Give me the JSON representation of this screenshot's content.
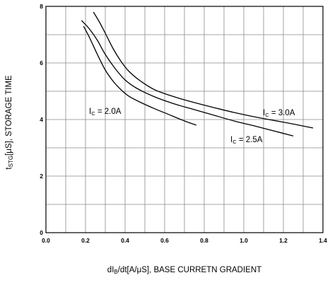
{
  "chart_data": {
    "type": "line",
    "xlabel_parts": [
      "dI",
      "B",
      "/dt[A/μS], BASE CURRETN GRADIENT"
    ],
    "ylabel_parts": [
      "t",
      "STG",
      "[μS], STORAGE TIME"
    ],
    "xlim": [
      0.0,
      1.4
    ],
    "ylim": [
      0,
      8
    ],
    "x_ticks": [
      0.0,
      0.2,
      0.4,
      0.6,
      0.8,
      1.0,
      1.2,
      1.4
    ],
    "x_tick_labels": [
      "0.0",
      "0.2",
      "0.4",
      "0.6",
      "0.8",
      "1.0",
      "1.2",
      "1.4"
    ],
    "y_ticks": [
      0,
      2,
      4,
      6,
      8
    ],
    "y_tick_labels": [
      "0",
      "2",
      "4",
      "6",
      "8"
    ],
    "grid": true,
    "series": [
      {
        "name_parts": [
          "I",
          "C",
          " = 2.0A"
        ],
        "x": [
          0.19,
          0.22,
          0.26,
          0.3,
          0.34,
          0.38,
          0.42,
          0.48,
          0.55,
          0.62,
          0.7,
          0.76
        ],
        "y": [
          7.3,
          6.9,
          6.3,
          5.75,
          5.35,
          5.05,
          4.82,
          4.6,
          4.38,
          4.18,
          3.95,
          3.8
        ]
      },
      {
        "name_parts": [
          "I",
          "C",
          " = 2.5A"
        ],
        "x": [
          0.18,
          0.22,
          0.26,
          0.3,
          0.35,
          0.4,
          0.46,
          0.55,
          0.65,
          0.75,
          0.85,
          0.95,
          1.05,
          1.15,
          1.25
        ],
        "y": [
          7.5,
          7.2,
          6.8,
          6.3,
          5.8,
          5.4,
          5.1,
          4.8,
          4.55,
          4.35,
          4.15,
          3.95,
          3.78,
          3.6,
          3.42
        ]
      },
      {
        "name_parts": [
          "I",
          "C",
          " = 3.0A"
        ],
        "x": [
          0.24,
          0.27,
          0.3,
          0.34,
          0.38,
          0.42,
          0.48,
          0.55,
          0.65,
          0.75,
          0.85,
          0.95,
          1.05,
          1.15,
          1.25,
          1.35
        ],
        "y": [
          7.8,
          7.45,
          7.05,
          6.5,
          6.05,
          5.7,
          5.35,
          5.05,
          4.8,
          4.6,
          4.42,
          4.25,
          4.1,
          3.97,
          3.84,
          3.7
        ]
      }
    ]
  }
}
